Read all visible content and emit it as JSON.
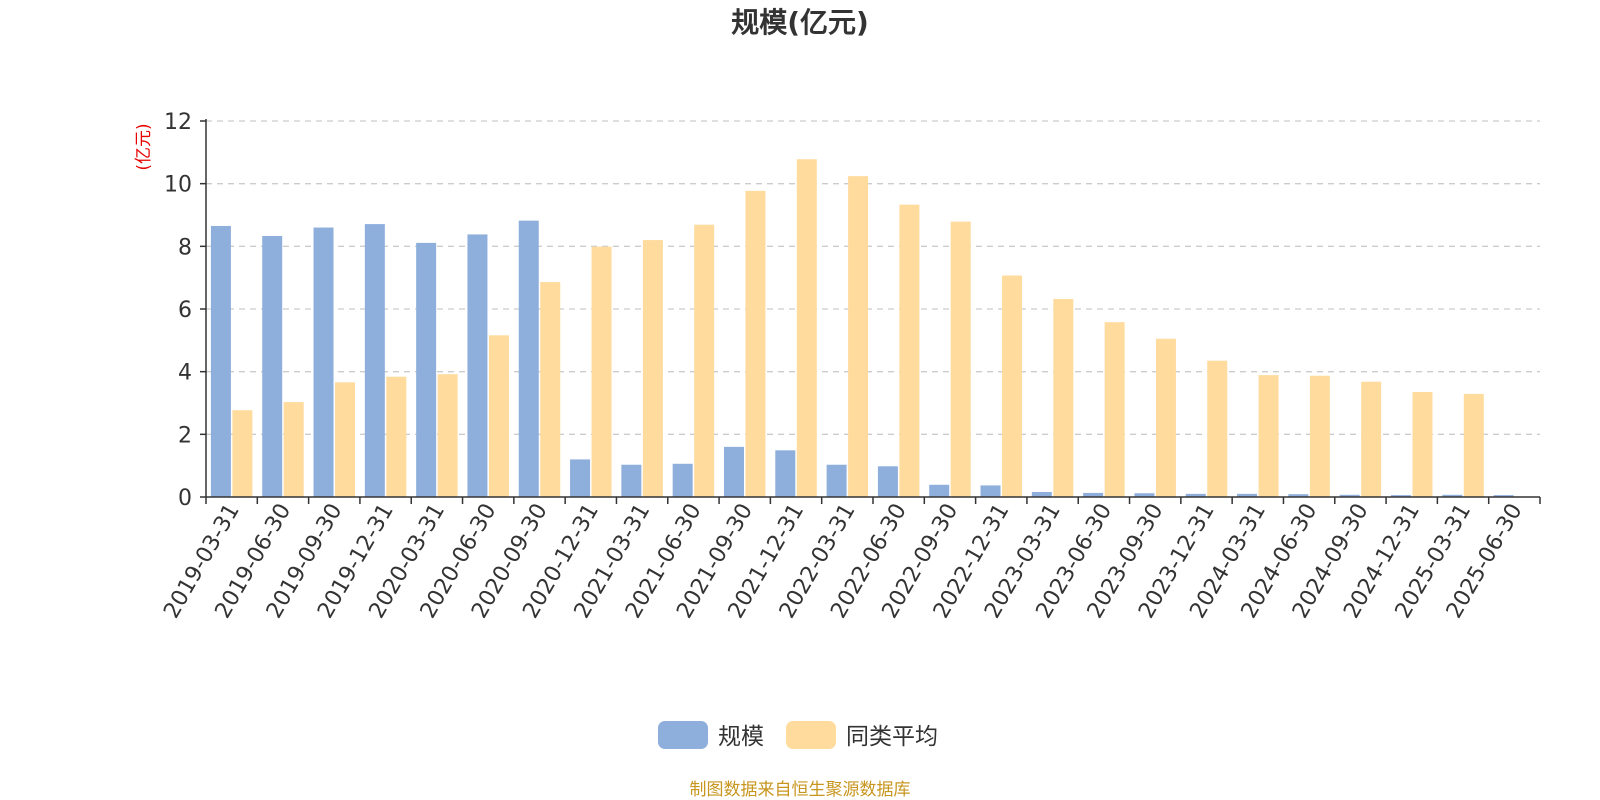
{
  "chart_data": {
    "type": "bar",
    "title": "规模(亿元)",
    "ylabel": "(亿元)",
    "ylim": [
      0,
      12
    ],
    "yticks": [
      0,
      2,
      4,
      6,
      8,
      10,
      12
    ],
    "grid": true,
    "legend_position": "bottom",
    "categories": [
      "2019-03-31",
      "2019-06-30",
      "2019-09-30",
      "2019-12-31",
      "2020-03-31",
      "2020-06-30",
      "2020-09-30",
      "2020-12-31",
      "2021-03-31",
      "2021-06-30",
      "2021-09-30",
      "2021-12-31",
      "2022-03-31",
      "2022-06-30",
      "2022-09-30",
      "2022-12-31",
      "2023-03-31",
      "2023-06-30",
      "2023-09-30",
      "2023-12-31",
      "2024-03-31",
      "2024-06-30",
      "2024-09-30",
      "2024-12-31",
      "2025-03-31",
      "2025-06-30"
    ],
    "series": [
      {
        "name": "规模",
        "color": "#8eafdc",
        "values": [
          8.65,
          8.33,
          8.6,
          8.71,
          8.11,
          8.38,
          8.82,
          1.2,
          1.03,
          1.06,
          1.6,
          1.49,
          1.03,
          0.98,
          0.39,
          0.37,
          0.16,
          0.13,
          0.12,
          0.1,
          0.1,
          0.09,
          0.07,
          0.06,
          0.07,
          0.06
        ]
      },
      {
        "name": "同类平均",
        "color": "#ffdb9e",
        "values": [
          2.77,
          3.03,
          3.66,
          3.84,
          3.92,
          5.16,
          6.86,
          7.99,
          8.2,
          8.69,
          9.77,
          10.78,
          10.24,
          9.33,
          8.79,
          7.07,
          6.32,
          5.58,
          5.05,
          4.35,
          3.89,
          3.87,
          3.68,
          3.35,
          3.29,
          null
        ]
      }
    ]
  },
  "source_text": "制图数据来自恒生聚源数据库"
}
